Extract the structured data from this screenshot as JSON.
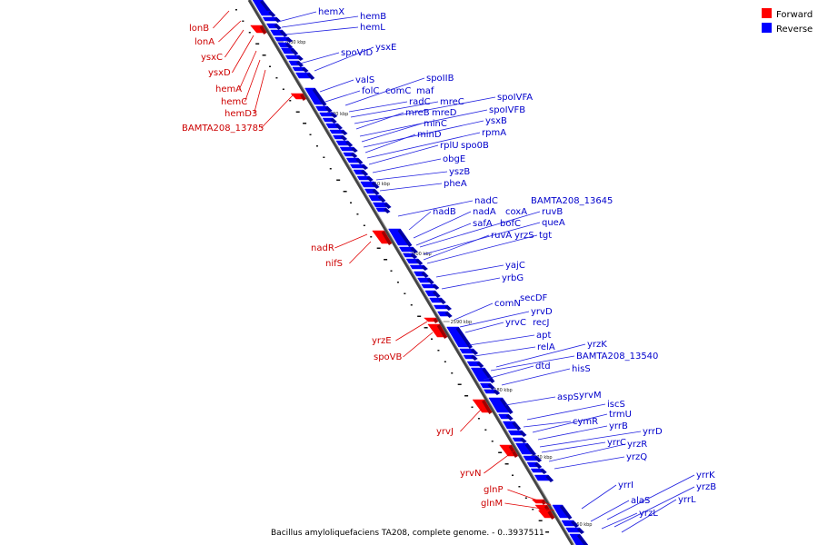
{
  "caption": "Bacillus amyloliquefaciens TA208, complete genome. - 0..3937511",
  "legend": {
    "forward": {
      "label": "Forward",
      "color": "#ff0000"
    },
    "reverse": {
      "label": "Reverse",
      "color": "#0000ff"
    }
  },
  "ticks": [
    "2630 kbp",
    "2620 kbp",
    "2610 kbp",
    "2600 kbp",
    "2590 kbp",
    "2580 kbp",
    "2570 kbp",
    "2560 kbp"
  ],
  "forward_labels": [
    "lonB",
    "lonA",
    "ysxC",
    "ysxD",
    "hemA",
    "hemC",
    "hemD3",
    "BAMTA208_13785",
    "nadR",
    "nifS",
    "yrzE",
    "spoVB",
    "yrvJ",
    "yrvN",
    "glnP",
    "glnM"
  ],
  "reverse_labels": [
    "hemX",
    "hemB",
    "hemL",
    "spoVID",
    "ysxE",
    "valS",
    "folC",
    "comC",
    "maf",
    "spoIIB",
    "radC",
    "mreC",
    "spoIVFA",
    "mreB",
    "mreD",
    "spoIVFB",
    "minC",
    "ysxB",
    "minD",
    "rpmA",
    "rplU",
    "spo0B",
    "obgE",
    "yszB",
    "pheA",
    "nadC",
    "BAMTA208_13645",
    "nadB",
    "nadA",
    "coxA",
    "ruvB",
    "safA",
    "bofC",
    "queA",
    "ruvA",
    "yrzS",
    "tgt",
    "yajC",
    "yrbG",
    "comN",
    "secDF",
    "yrvD",
    "yrvC",
    "recJ",
    "apt",
    "relA",
    "yrzK",
    "BAMTA208_13540",
    "dtd",
    "hisS",
    "aspS",
    "yrvM",
    "iscS",
    "cymR",
    "trmU",
    "yrrB",
    "yrrD",
    "yrrC",
    "yrzR",
    "yrzQ",
    "yrrI",
    "yrrK",
    "alaS",
    "yrzB",
    "yrzL",
    "yrrL"
  ]
}
